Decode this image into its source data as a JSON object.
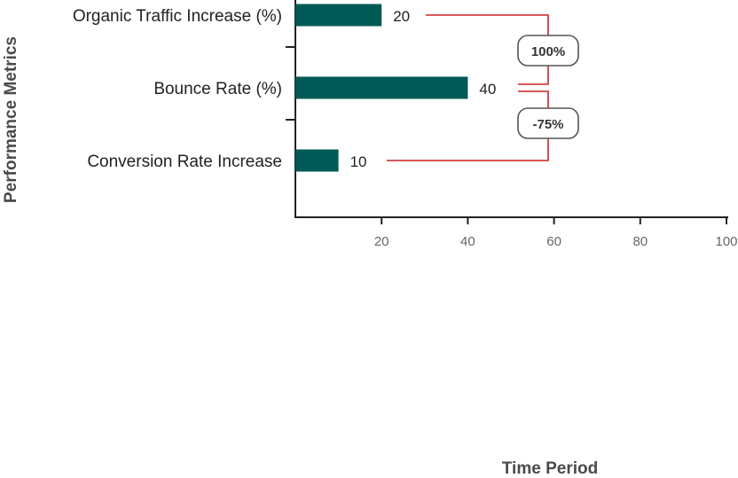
{
  "chart_data": {
    "type": "bar",
    "orientation": "horizontal",
    "categories": [
      "Organic Traffic Increase (%)",
      "Bounce Rate (%)",
      "Conversion Rate Increase"
    ],
    "values": [
      20,
      40,
      10
    ],
    "value_labels": [
      "20",
      "40",
      "10"
    ],
    "xlim": [
      0,
      100
    ],
    "xticks": [
      20,
      40,
      60,
      80,
      100
    ],
    "xtick_labels": [
      "20",
      "40",
      "60",
      "80",
      "100"
    ],
    "xlabel": "Time Period",
    "ylabel": "Performance Metrics",
    "grid": false,
    "bar_color": "#005a55",
    "annotation_color": "#cc2222",
    "annotations": [
      {
        "from": 0,
        "to": 1,
        "label": "100%"
      },
      {
        "from": 1,
        "to": 2,
        "label": "-75%"
      }
    ]
  }
}
